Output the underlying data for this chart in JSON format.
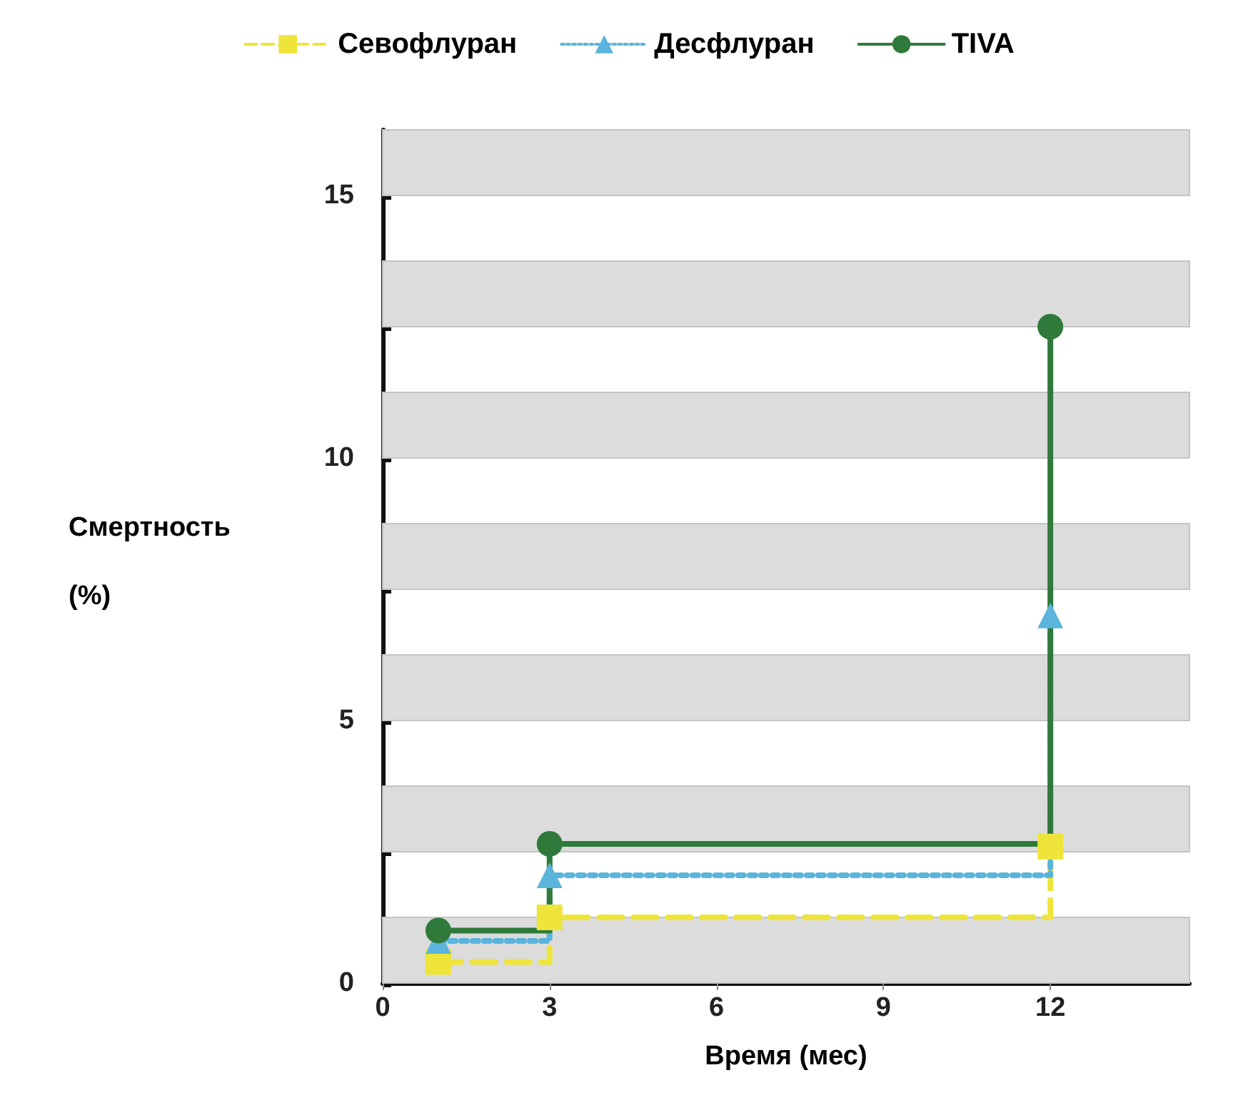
{
  "chart_data": {
    "type": "step",
    "xlabel": "Время (мес)",
    "ylabel": "Смертность (%)",
    "xlim": [
      0,
      14.5
    ],
    "xticks": [
      0,
      3,
      6,
      9,
      12
    ],
    "ylim": [
      0,
      16.25
    ],
    "yticks": [
      0,
      {
        "value": 2.5,
        "label": null
      },
      5,
      {
        "value": 7.5,
        "label": null
      },
      10,
      {
        "value": 12.5,
        "label": null
      },
      15
    ],
    "legend": "top",
    "x": [
      1,
      3,
      12
    ],
    "bands": [
      {
        "axis": "y",
        "from": 0,
        "to": 1.25,
        "color": "#dcdcdc"
      },
      {
        "axis": "y",
        "from": 2.5,
        "to": 3.75,
        "color": "#dcdcdc"
      },
      {
        "axis": "y",
        "from": 5,
        "to": 6.25,
        "color": "#dcdcdc"
      },
      {
        "axis": "y",
        "from": 7.5,
        "to": 8.75,
        "color": "#dcdcdc"
      },
      {
        "axis": "y",
        "from": 10,
        "to": 11.25,
        "color": "#dcdcdc"
      },
      {
        "axis": "y",
        "from": 12.5,
        "to": 13.75,
        "color": "#dcdcdc"
      },
      {
        "axis": "y",
        "from": 15,
        "to": 16.25,
        "color": "#dcdcdc"
      }
    ],
    "series": [
      {
        "name": "Севофлуран",
        "color": "#efe43a",
        "values": [
          0.4,
          1.25,
          2.6
        ],
        "marker": "square",
        "line_style": "dashed"
      },
      {
        "name": "Десфлуран",
        "color": "#5ab4dc",
        "values": [
          0.8,
          2.05,
          7.0
        ],
        "marker": "triangle",
        "line_style": "dotted"
      },
      {
        "name": "TIVA",
        "color": "#2f7a3a",
        "values": [
          1.0,
          2.65,
          12.5
        ],
        "marker": "circle",
        "line_style": "solid"
      }
    ]
  }
}
